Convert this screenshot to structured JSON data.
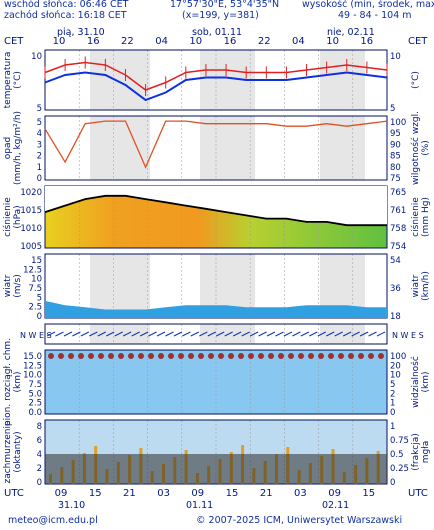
{
  "header": {
    "sunrise": "wschód słońca: 06:46 CET",
    "sunset": "zachód słońca: 16:18 CET",
    "coords": "17°57'30\"E, 53°4'35\"N",
    "grid": "(x=199, y=381)",
    "elevation_label": "wysokość (min, środek, max)",
    "elevation_values": "49 - 84 - 104 m"
  },
  "timezone_label": "CET",
  "utc_label": "UTC",
  "days_top": [
    "pią, 31.10",
    "sob, 01.11",
    "nie, 02.11"
  ],
  "hours_top": [
    "10",
    "16",
    "22",
    "04",
    "10",
    "16",
    "22",
    "04",
    "10",
    "16"
  ],
  "hours_bottom": [
    "09",
    "15",
    "21",
    "03",
    "09",
    "15",
    "21",
    "03",
    "09",
    "15"
  ],
  "days_bottom": [
    "31.10",
    "01.11",
    "02.11"
  ],
  "panels": {
    "temperature": {
      "label_left": "temperatura\n(°C)",
      "label_right": "(°C)",
      "ticks": [
        "10",
        "5"
      ]
    },
    "precip": {
      "label_left": "opad\n(mm/h, kg/m²/h)",
      "label_right": "wilgotność wzgl.\n(%)",
      "ticks_left": [
        "5",
        "4",
        "3",
        "2",
        "1",
        "0"
      ],
      "ticks_right": [
        "100",
        "95",
        "90",
        "85",
        "80",
        "75"
      ]
    },
    "pressure": {
      "label_left": "ciśnienie\n(hPa)",
      "label_right": "ciśnienie\n(mm Hg)",
      "ticks_left": [
        "1020",
        "1015",
        "1010",
        "1005"
      ],
      "ticks_right": [
        "765",
        "761",
        "758",
        "754"
      ]
    },
    "wind": {
      "label_left": "wiatr\n(m/s)",
      "label_right": "wiatr\n(km/h)",
      "ticks_left": [
        "15",
        "12.5",
        "10",
        "7.5",
        "5",
        "2.5",
        "0"
      ],
      "ticks_right": [
        "54",
        "36",
        "18"
      ]
    },
    "winddir": {
      "compass": "N W E S"
    },
    "visibility": {
      "label_left": "pion. rozciągł. chm.\n(km)",
      "label_right": "widzialność\n(km)",
      "ticks_left": [
        "15.0",
        "12.5",
        "10.0",
        "7.5",
        "5.0",
        "2.5",
        "0.0"
      ],
      "ticks_right": [
        "100",
        "20",
        "10",
        "5",
        "2",
        "1",
        "0"
      ]
    },
    "clouds": {
      "label_left": "zachmurzenie\n(oktanty)",
      "label_right": "(frakcja)\nmgła",
      "ticks_left": [
        "8",
        "6",
        "4",
        "2",
        "0"
      ],
      "ticks_right": [
        "1",
        "0.75",
        "0.5",
        "0.25",
        "0"
      ]
    }
  },
  "footer": {
    "email": "meteo@icm.edu.pl",
    "copyright": "© 2007-2025 ICM, Uniwersytet Warszawski"
  },
  "colors": {
    "frame": "#001060",
    "text": "#1030a0",
    "temp_line": "#e02020",
    "temp2": "#1030e0",
    "humidity": "#e05020",
    "pressure_line": "#000000"
  },
  "chart_data": [
    {
      "type": "line",
      "name": "temperatura",
      "x_start": "31.10 09 UTC",
      "step_hours": 3,
      "series": [
        {
          "values": [
            9.5,
            11.0,
            11.5,
            11.0,
            9.0,
            6.0,
            7.5,
            9.5,
            10.0,
            10.0,
            9.5,
            9.5,
            9.5,
            10.0,
            10.5,
            11.0,
            10.5,
            10.0
          ]
        },
        {
          "values": [
            7.5,
            9.0,
            9.5,
            9.0,
            7.0,
            4.0,
            5.5,
            8.0,
            8.5,
            8.5,
            8.0,
            8.0,
            8.0,
            8.5,
            9.0,
            9.5,
            9.0,
            8.5
          ]
        }
      ]
    },
    {
      "type": "line",
      "name": "wilgotność",
      "series": [
        {
          "values": [
            95,
            82,
            97,
            98,
            98,
            80,
            98,
            98,
            97,
            97,
            97,
            97,
            96,
            96,
            97,
            96,
            97,
            98
          ]
        }
      ]
    },
    {
      "type": "line",
      "name": "ciśnienie",
      "series": [
        {
          "values": [
            1014,
            1016,
            1018,
            1019,
            1019,
            1018,
            1017,
            1016,
            1015,
            1014,
            1013,
            1012,
            1012,
            1011,
            1011,
            1010,
            1010,
            1010
          ]
        }
      ]
    },
    {
      "type": "area",
      "name": "wiatr",
      "series": [
        {
          "values": [
            4,
            3,
            2.5,
            2,
            2,
            2,
            2.5,
            3,
            3,
            3,
            2.5,
            2.5,
            2.5,
            3,
            3,
            3,
            2.5,
            2.5
          ]
        }
      ]
    }
  ]
}
